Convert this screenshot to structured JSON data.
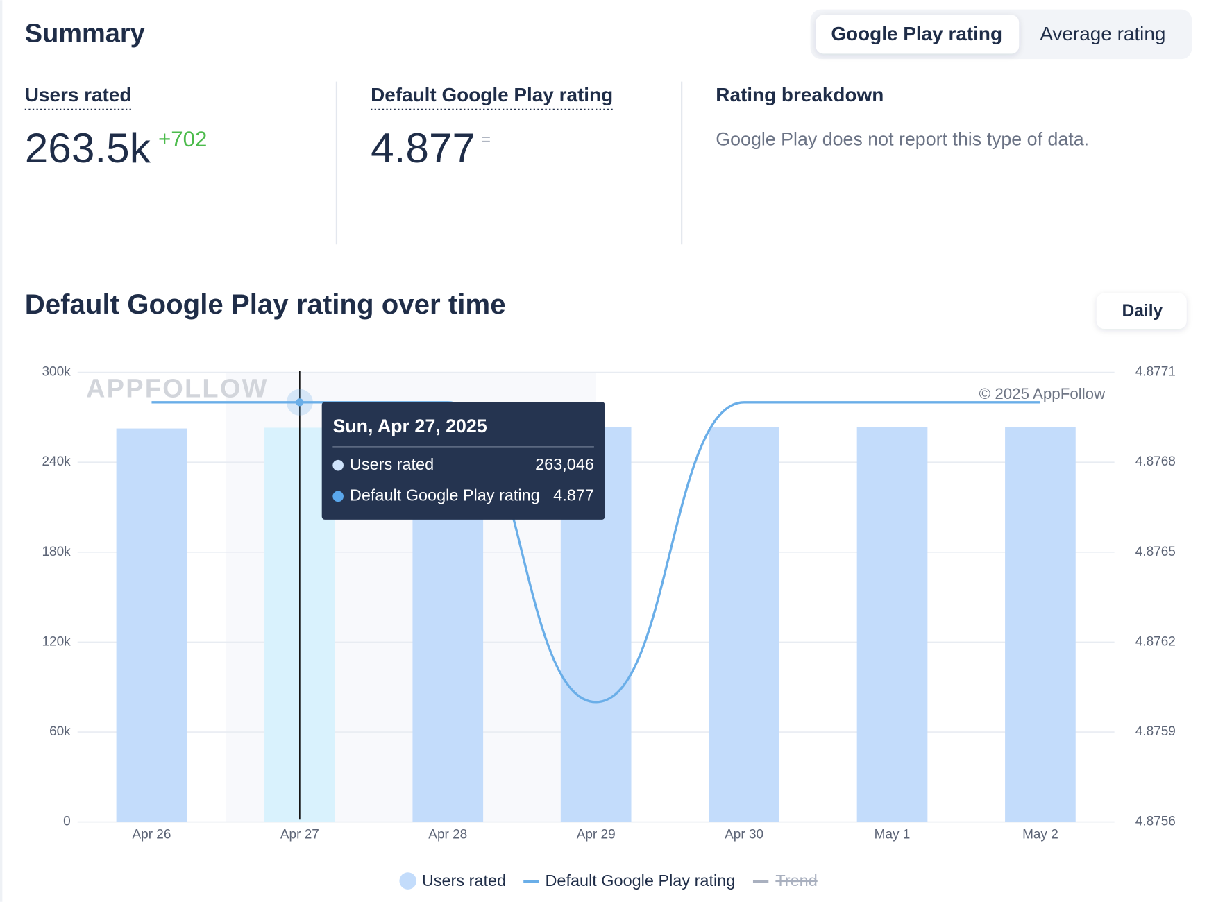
{
  "header": {
    "title": "Summary",
    "tabs": [
      "Google Play rating",
      "Average rating"
    ],
    "active_tab": 0
  },
  "metrics": [
    {
      "label": "Users rated",
      "value": "263.5k",
      "change": "+702"
    },
    {
      "label": "Default Google Play rating",
      "value": "4.877",
      "change": "="
    },
    {
      "label": "Rating breakdown",
      "message": "Google Play does not report this type of data."
    }
  ],
  "chart_section": {
    "title": "Default Google Play rating over time",
    "period_button": "Daily",
    "watermark": "APPFOLLOW",
    "copyright": "© 2025 AppFollow"
  },
  "tooltip": {
    "title": "Sun, Apr 27, 2025",
    "rows": [
      {
        "name": "Users rated",
        "value": "263,046"
      },
      {
        "name": "Default Google Play rating",
        "value": "4.877"
      }
    ]
  },
  "chart_data": {
    "type": "bar",
    "categories": [
      "Apr 26",
      "Apr 27",
      "Apr 28",
      "Apr 29",
      "Apr 30",
      "May 1",
      "May 2"
    ],
    "series": [
      {
        "name": "Users rated",
        "color": "#c3dcfb",
        "values": [
          262500,
          263046,
          263300,
          263400,
          263500,
          263500,
          263600
        ]
      },
      {
        "name": "Default Google Play rating",
        "color": "#6aaee8",
        "type": "line",
        "axis": "y2",
        "values": [
          4.877,
          4.877,
          4.877,
          4.876,
          4.877,
          4.877,
          4.877
        ]
      }
    ],
    "hidden_series": [
      {
        "name": "Trend",
        "color": "#a9b0bf"
      }
    ],
    "highlight": 1,
    "ylim": [
      0,
      300000
    ],
    "yticks": [
      0,
      {
        "value": 60000,
        "label": "60k"
      },
      {
        "value": 120000,
        "label": "120k"
      },
      {
        "value": 180000,
        "label": "180k"
      },
      {
        "value": 240000,
        "label": "240k"
      },
      {
        "value": 300000,
        "label": "300k"
      }
    ],
    "y2lim": [
      4.8756,
      4.8771
    ],
    "y2ticks": [
      4.8756,
      4.8759,
      4.8762,
      4.8765,
      4.8768,
      4.8771
    ],
    "grid": true
  }
}
